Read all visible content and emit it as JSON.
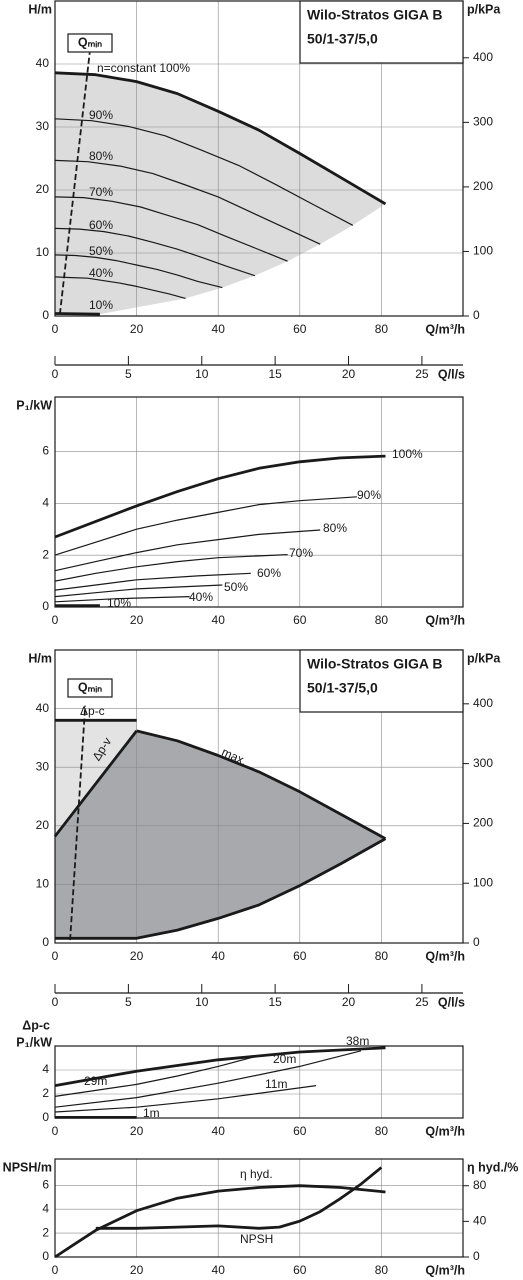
{
  "chart_data": [
    {
      "type": "line",
      "title": "Wilo-Stratos GIGA B",
      "subtitle": "50/1-37/5,0",
      "ylabel": "H/m",
      "y2label": "p/kPa",
      "xlabel": "Q/m³/h",
      "x2label": "Q/l/s",
      "xlim": [
        0,
        100
      ],
      "xticks": [
        0,
        20,
        40,
        60,
        80
      ],
      "ylim": [
        0,
        50
      ],
      "yticks": [
        0,
        10,
        20,
        30,
        40
      ],
      "y2lim": [
        0,
        488
      ],
      "y2ticks": [
        0,
        100,
        200,
        300,
        400
      ],
      "x2lim": [
        0,
        27.8
      ],
      "x2ticks": [
        0,
        5,
        10,
        15,
        20,
        25
      ],
      "grid": true,
      "series": [
        {
          "name": "n=constant 100%",
          "color": "#1a1a1a",
          "line": "bold",
          "x": [
            0,
            10,
            20,
            30,
            40,
            50,
            60,
            70,
            81
          ],
          "values": [
            38.6,
            38.3,
            37.2,
            35.3,
            32.5,
            29.5,
            25.8,
            22,
            17.8
          ]
        },
        {
          "name": "90%",
          "color": "#1a1a1a",
          "line": "thin",
          "x": [
            0,
            9,
            18,
            27,
            36,
            45,
            54,
            63,
            73
          ],
          "values": [
            31.3,
            31.0,
            30.1,
            28.6,
            26.3,
            23.9,
            20.9,
            17.8,
            14.4
          ]
        },
        {
          "name": "80%",
          "color": "#1a1a1a",
          "line": "thin",
          "x": [
            0,
            8,
            16,
            24,
            32,
            40,
            48,
            56,
            65
          ],
          "values": [
            24.7,
            24.5,
            23.8,
            22.6,
            20.8,
            18.9,
            16.5,
            14.1,
            11.4
          ]
        },
        {
          "name": "70%",
          "color": "#1a1a1a",
          "line": "thin",
          "x": [
            0,
            7,
            14,
            21,
            28,
            35,
            42,
            49,
            57
          ],
          "values": [
            18.9,
            18.8,
            18.2,
            17.3,
            15.9,
            14.5,
            12.6,
            10.8,
            8.7
          ]
        },
        {
          "name": "60%",
          "color": "#1a1a1a",
          "line": "thin",
          "x": [
            0,
            6,
            12,
            18,
            24,
            30,
            36,
            42,
            49
          ],
          "values": [
            13.9,
            13.8,
            13.4,
            12.7,
            11.7,
            10.6,
            9.3,
            7.9,
            6.4
          ]
        },
        {
          "name": "50%",
          "color": "#1a1a1a",
          "line": "thin",
          "x": [
            0,
            5,
            10,
            15,
            20,
            25,
            30,
            35,
            41
          ],
          "values": [
            9.7,
            9.6,
            9.3,
            8.8,
            8.1,
            7.4,
            6.5,
            5.5,
            4.5
          ]
        },
        {
          "name": "40%",
          "color": "#1a1a1a",
          "line": "thin",
          "x": [
            0,
            4,
            8,
            12,
            16,
            20,
            24,
            28,
            32
          ],
          "values": [
            6.2,
            6.1,
            6.0,
            5.6,
            5.2,
            4.7,
            4.1,
            3.5,
            2.8
          ]
        },
        {
          "name": "10%",
          "color": "#1a1a1a",
          "line": "bold",
          "x": [
            0,
            11
          ],
          "values": [
            0.4,
            0.3
          ]
        },
        {
          "name": "Qₘᵢₙ",
          "color": "#1a1a1a",
          "line": "dashed",
          "x": [
            1.2,
            8.5
          ],
          "values": [
            0.3,
            41.8
          ]
        }
      ]
    },
    {
      "type": "line",
      "ylabel": "P₁/kW",
      "xlabel": "Q/m³/h",
      "xlim": [
        0,
        100
      ],
      "xticks": [
        0,
        20,
        40,
        60,
        80
      ],
      "ylim": [
        0,
        8.1
      ],
      "yticks": [
        0,
        2,
        4,
        6
      ],
      "grid": true,
      "series": [
        {
          "name": "100%",
          "color": "#1a1a1a",
          "line": "bold",
          "x": [
            0,
            10,
            20,
            30,
            40,
            50,
            60,
            70,
            81
          ],
          "values": [
            2.7,
            3.3,
            3.9,
            4.45,
            4.95,
            5.35,
            5.6,
            5.75,
            5.82
          ]
        },
        {
          "name": "90%",
          "color": "#1a1a1a",
          "line": "thin",
          "x": [
            0,
            10,
            20,
            30,
            40,
            50,
            60,
            74
          ],
          "values": [
            2.0,
            2.5,
            3.0,
            3.35,
            3.65,
            3.95,
            4.1,
            4.25
          ]
        },
        {
          "name": "80%",
          "color": "#1a1a1a",
          "line": "thin",
          "x": [
            0,
            10,
            20,
            30,
            40,
            50,
            65
          ],
          "values": [
            1.4,
            1.75,
            2.1,
            2.4,
            2.6,
            2.8,
            2.97
          ]
        },
        {
          "name": "70%",
          "color": "#1a1a1a",
          "line": "thin",
          "x": [
            0,
            10,
            20,
            30,
            40,
            57
          ],
          "values": [
            1.0,
            1.3,
            1.55,
            1.75,
            1.9,
            2.02
          ]
        },
        {
          "name": "60%",
          "color": "#1a1a1a",
          "line": "thin",
          "x": [
            0,
            10,
            20,
            35,
            48
          ],
          "values": [
            0.65,
            0.85,
            1.05,
            1.2,
            1.3
          ]
        },
        {
          "name": "50%",
          "color": "#1a1a1a",
          "line": "thin",
          "x": [
            0,
            10,
            20,
            41
          ],
          "values": [
            0.4,
            0.55,
            0.7,
            0.85
          ]
        },
        {
          "name": "40%",
          "color": "#1a1a1a",
          "line": "thin",
          "x": [
            0,
            15,
            33
          ],
          "values": [
            0.2,
            0.32,
            0.4
          ]
        },
        {
          "name": "10%",
          "color": "#1a1a1a",
          "line": "bold",
          "x": [
            0,
            11
          ],
          "values": [
            0.05,
            0.05
          ]
        }
      ]
    },
    {
      "type": "line",
      "title": "Wilo-Stratos GIGA B",
      "subtitle": "50/1-37/5,0",
      "ylabel": "H/m",
      "y2label": "p/kPa",
      "xlabel": "Q/m³/h",
      "x2label": "Q/l/s",
      "xlim": [
        0,
        100
      ],
      "xticks": [
        0,
        20,
        40,
        60,
        80
      ],
      "ylim": [
        0,
        50
      ],
      "yticks": [
        0,
        10,
        20,
        30,
        40
      ],
      "y2lim": [
        0,
        490
      ],
      "y2ticks": [
        0,
        100,
        200,
        300,
        400
      ],
      "x2lim": [
        0,
        27.8
      ],
      "x2ticks": [
        0,
        5,
        10,
        15,
        20,
        25
      ],
      "grid": true,
      "series": [
        {
          "name": "max.",
          "color": "#1a1a1a",
          "line": "bold",
          "x": [
            20,
            30,
            40,
            50,
            60,
            70,
            81
          ],
          "values": [
            36.2,
            34.5,
            32,
            29.2,
            25.8,
            22,
            17.8
          ]
        },
        {
          "name": "Δp-v",
          "color": "#1a1a1a",
          "line": "bold",
          "x": [
            0,
            20
          ],
          "values": [
            18.2,
            36.2
          ]
        },
        {
          "name": "Δp-c",
          "color": "#1a1a1a",
          "line": "bold",
          "x": [
            0,
            20
          ],
          "values": [
            38,
            38
          ]
        },
        {
          "color": "#1a1a1a",
          "line": "bold",
          "x": [
            0,
            20,
            30,
            40,
            50,
            60,
            70,
            81
          ],
          "values": [
            0.8,
            0.8,
            2.2,
            4.2,
            6.5,
            9.8,
            13.5,
            17.8
          ]
        },
        {
          "name": "Qₘᵢₙ",
          "color": "#1a1a1a",
          "line": "dashed",
          "x": [
            3.7,
            7.4
          ],
          "values": [
            0.5,
            40.5
          ]
        }
      ]
    },
    {
      "type": "line",
      "control_mode": "Δp-c",
      "ylabel": "P₁/kW",
      "xlabel": "Q/m³/h",
      "xlim": [
        0,
        100
      ],
      "xticks": [
        0,
        20,
        40,
        60,
        80
      ],
      "ylim": [
        0,
        6
      ],
      "yticks": [
        0,
        2,
        4
      ],
      "grid": true,
      "series": [
        {
          "name": "38m",
          "color": "#1a1a1a",
          "line": "bold",
          "x": [
            0,
            20,
            40,
            60,
            81
          ],
          "values": [
            2.7,
            3.9,
            4.85,
            5.5,
            5.85
          ]
        },
        {
          "name": "29m",
          "color": "#1a1a1a",
          "line": "thin",
          "x": [
            0,
            10,
            20,
            30,
            40,
            50
          ],
          "values": [
            1.8,
            2.3,
            2.8,
            3.5,
            4.3,
            5.2
          ]
        },
        {
          "name": "20m",
          "color": "#1a1a1a",
          "line": "thin",
          "x": [
            0,
            20,
            40,
            60,
            75
          ],
          "values": [
            0.9,
            1.7,
            2.9,
            4.3,
            5.6
          ]
        },
        {
          "name": "11m",
          "color": "#1a1a1a",
          "line": "thin",
          "x": [
            0,
            20,
            40,
            64
          ],
          "values": [
            0.5,
            0.9,
            1.6,
            2.7
          ]
        },
        {
          "name": "1m",
          "color": "#1a1a1a",
          "line": "bold",
          "x": [
            0,
            20
          ],
          "values": [
            0.05,
            0.05
          ]
        }
      ]
    },
    {
      "type": "line",
      "ylabel": "NPSH/m",
      "y2label": "η hyd./%",
      "xlabel": "Q/m³/h",
      "xlim": [
        0,
        100
      ],
      "xticks": [
        0,
        20,
        40,
        60,
        80
      ],
      "ylim": [
        0,
        8.2
      ],
      "yticks": [
        0,
        2,
        4,
        6
      ],
      "y2lim": [
        0,
        110
      ],
      "y2ticks": [
        0,
        40,
        80
      ],
      "grid": true,
      "series": [
        {
          "name": "η hyd.",
          "color": "#1a1a1a",
          "line": "bold",
          "axis": "y2",
          "x": [
            0,
            5,
            10,
            20,
            30,
            40,
            50,
            60,
            70,
            81
          ],
          "values": [
            0,
            15,
            30,
            52,
            66,
            74,
            78,
            80,
            78,
            73
          ]
        },
        {
          "name": "NPSH",
          "color": "#1a1a1a",
          "line": "bold",
          "x": [
            10,
            20,
            30,
            40,
            50,
            55,
            60,
            65,
            70,
            75,
            80
          ],
          "values": [
            2.4,
            2.4,
            2.5,
            2.6,
            2.4,
            2.5,
            3.0,
            3.8,
            4.9,
            6.1,
            7.5
          ]
        }
      ]
    }
  ]
}
